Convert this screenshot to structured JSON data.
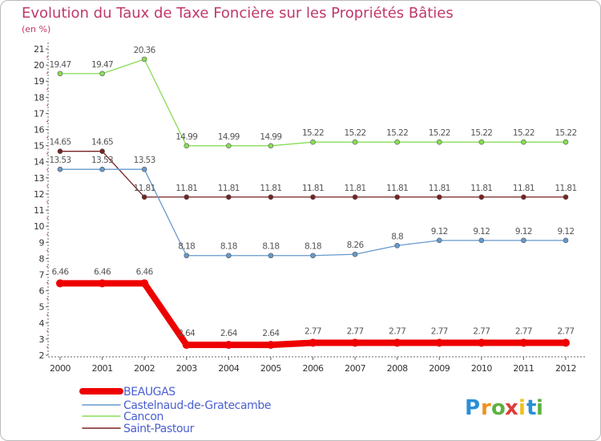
{
  "chart_data": {
    "type": "line",
    "title": "Evolution du Taux de Taxe Foncière sur les Propriétés Bâties",
    "subtitle": "(en %)",
    "xlabel": "",
    "ylabel": "",
    "x": [
      "2000",
      "2001",
      "2002",
      "2003",
      "2004",
      "2005",
      "2006",
      "2007",
      "2008",
      "2009",
      "2010",
      "2011",
      "2012"
    ],
    "yticks": [
      2,
      3,
      4,
      5,
      6,
      7,
      8,
      9,
      10,
      11,
      12,
      13,
      14,
      15,
      16,
      17,
      18,
      19,
      20,
      21
    ],
    "ylim": [
      2,
      21
    ],
    "grid": false,
    "legend_position": "bottom-left",
    "series": [
      {
        "name": "BEAUGAS",
        "color": "#ee0000",
        "values": [
          6.46,
          6.46,
          6.46,
          2.64,
          2.64,
          2.64,
          2.77,
          2.77,
          2.77,
          2.77,
          2.77,
          2.77,
          2.77
        ],
        "labels": [
          "6.46",
          "6.46",
          "6.46",
          "2.64",
          "2.64",
          "2.64",
          "2.77",
          "2.77",
          "2.77",
          "2.77",
          "2.77",
          "2.77",
          "2.77"
        ]
      },
      {
        "name": "Castelnaud-de-Gratecambe",
        "color": "#6699cc",
        "values": [
          13.53,
          13.53,
          13.53,
          8.18,
          8.18,
          8.18,
          8.18,
          8.26,
          8.8,
          9.12,
          9.12,
          9.12,
          9.12
        ],
        "labels": [
          "13.53",
          "13.53",
          "13.53",
          "8.18",
          "8.18",
          "8.18",
          "8.18",
          "8.26",
          "8.8",
          "9.12",
          "9.12",
          "9.12",
          "9.12"
        ]
      },
      {
        "name": "Cancon",
        "color": "#88dd55",
        "values": [
          19.47,
          19.47,
          20.36,
          14.99,
          14.99,
          14.99,
          15.22,
          15.22,
          15.22,
          15.22,
          15.22,
          15.22,
          15.22
        ],
        "labels": [
          "19.47",
          "19.47",
          "20.36",
          "14.99",
          "14.99",
          "14.99",
          "15.22",
          "15.22",
          "15.22",
          "15.22",
          "15.22",
          "15.22",
          "15.22"
        ]
      },
      {
        "name": "Saint-Pastour",
        "color": "#772222",
        "values": [
          14.65,
          14.65,
          11.81,
          11.81,
          11.81,
          11.81,
          11.81,
          11.81,
          11.81,
          11.81,
          11.81,
          11.81,
          11.81
        ],
        "labels": [
          "14.65",
          "14.65",
          "11.81",
          "11.81",
          "11.81",
          "11.81",
          "11.81",
          "11.81",
          "11.81",
          "11.81",
          "11.81",
          "11.81",
          "11.81"
        ]
      }
    ]
  },
  "brand": {
    "letters": [
      "P",
      "r",
      "o",
      "x",
      "i",
      "t",
      "i"
    ],
    "colors": [
      "#2a8fd6",
      "#f09020",
      "#5fb040",
      "#e03a3a",
      "#f0c020",
      "#2a8fd6",
      "#5fb040"
    ]
  }
}
